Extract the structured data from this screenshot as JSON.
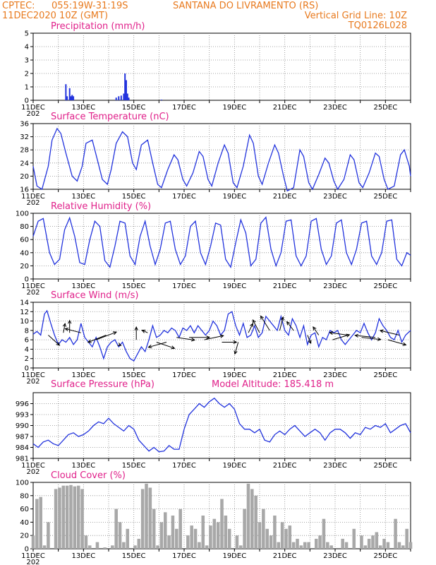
{
  "header": {
    "source": "CPTEC:",
    "coords": "055:19W-31:19S",
    "location": "SANTANA DO LIVRAMENTO (RS)",
    "run": "11DEC2020 10Z (GMT)",
    "grid_note": "Vertical Grid Line: 10Z",
    "model_code": "TQ0126L028"
  },
  "x_axis": {
    "days": [
      11,
      26
    ],
    "labels": [
      "11DEC",
      "13DEC",
      "15DEC",
      "17DEC",
      "19DEC",
      "21DEC",
      "23DEC",
      "25DEC"
    ],
    "label_days": [
      11,
      13,
      15,
      17,
      19,
      21,
      23,
      25
    ],
    "fragment": "202"
  },
  "colors": {
    "line": "#2233dd",
    "bar": "#2233dd",
    "cloud": "#a8a8a8",
    "arrow": "#000000",
    "header": "#e87a1e",
    "title": "#e0208a"
  },
  "chart_data": [
    {
      "id": "precip",
      "type": "bar",
      "title": "Precipitation (mm/h)",
      "ylim": [
        0,
        5
      ],
      "yticks": [
        "0",
        "1",
        "2",
        "3",
        "4",
        "5"
      ],
      "x": [
        12.3,
        12.35,
        12.45,
        12.5,
        12.55,
        12.6,
        14.3,
        14.4,
        14.5,
        14.6,
        14.65,
        14.7,
        14.75,
        14.8,
        16.1
      ],
      "values": [
        1.2,
        0.3,
        0.9,
        0.3,
        0.4,
        0.3,
        0.2,
        0.3,
        0.35,
        0.5,
        2.0,
        1.5,
        0.5,
        0.2,
        0.05
      ]
    },
    {
      "id": "temp",
      "type": "line",
      "title": "Surface Temperature (nC)",
      "ylim": [
        16,
        36
      ],
      "yticks": [
        "16",
        "20",
        "24",
        "28",
        "32",
        "36"
      ],
      "x": [
        11.0,
        11.15,
        11.35,
        11.6,
        11.75,
        11.95,
        12.1,
        12.3,
        12.55,
        12.75,
        12.95,
        13.1,
        13.35,
        13.55,
        13.75,
        13.95,
        14.1,
        14.3,
        14.55,
        14.75,
        14.95,
        15.1,
        15.3,
        15.55,
        15.75,
        15.95,
        16.1,
        16.35,
        16.6,
        16.75,
        16.95,
        17.1,
        17.35,
        17.6,
        17.75,
        17.95,
        18.1,
        18.35,
        18.6,
        18.75,
        18.95,
        19.1,
        19.35,
        19.6,
        19.75,
        19.95,
        20.1,
        20.35,
        20.6,
        20.75,
        20.95,
        21.1,
        21.35,
        21.6,
        21.75,
        21.95,
        22.1,
        22.35,
        22.6,
        22.75,
        22.95,
        23.1,
        23.35,
        23.6,
        23.75,
        23.95,
        24.1,
        24.35,
        24.6,
        24.75,
        24.95,
        25.1,
        25.35,
        25.6,
        25.75,
        25.95,
        26.0
      ],
      "values": [
        23,
        17,
        16,
        23,
        31,
        34.5,
        33,
        27,
        20,
        18.5,
        23,
        30,
        31,
        25,
        19,
        17.5,
        22,
        30,
        33.5,
        32,
        24,
        22,
        29.5,
        31,
        24,
        17.5,
        16.5,
        22,
        26.5,
        25,
        19,
        17,
        21,
        27.5,
        26,
        19,
        17,
        24,
        29.5,
        27,
        18,
        16.5,
        23,
        32.5,
        30,
        20,
        17.5,
        24,
        29.5,
        27,
        20,
        15.5,
        16.5,
        28,
        26,
        18,
        16,
        20.5,
        25.5,
        24,
        18.5,
        16,
        19,
        26.5,
        25,
        18,
        16.5,
        21,
        27,
        26,
        19,
        16,
        17,
        26.5,
        28,
        23,
        20
      ]
    },
    {
      "id": "rh",
      "type": "line",
      "title": "Relative Humidity (%)",
      "ylim": [
        0,
        100
      ],
      "yticks": [
        "0",
        "20",
        "40",
        "60",
        "80",
        "100"
      ],
      "x": [
        11.0,
        11.2,
        11.4,
        11.65,
        11.85,
        12.05,
        12.25,
        12.45,
        12.65,
        12.85,
        13.05,
        13.25,
        13.45,
        13.65,
        13.85,
        14.05,
        14.25,
        14.45,
        14.65,
        14.85,
        15.05,
        15.25,
        15.45,
        15.65,
        15.85,
        16.05,
        16.25,
        16.45,
        16.65,
        16.85,
        17.05,
        17.25,
        17.45,
        17.65,
        17.85,
        18.05,
        18.25,
        18.45,
        18.65,
        18.85,
        19.05,
        19.25,
        19.45,
        19.65,
        19.85,
        20.05,
        20.25,
        20.45,
        20.65,
        20.85,
        21.05,
        21.25,
        21.45,
        21.65,
        21.85,
        22.05,
        22.25,
        22.45,
        22.65,
        22.85,
        23.05,
        23.25,
        23.45,
        23.65,
        23.85,
        24.05,
        24.25,
        24.45,
        24.65,
        24.85,
        25.05,
        25.25,
        25.45,
        25.65,
        25.85,
        26.0
      ],
      "values": [
        65,
        88,
        92,
        40,
        22,
        30,
        75,
        93,
        65,
        25,
        22,
        60,
        88,
        80,
        28,
        18,
        50,
        88,
        85,
        35,
        22,
        65,
        88,
        50,
        22,
        45,
        85,
        88,
        45,
        22,
        35,
        80,
        88,
        40,
        22,
        50,
        85,
        82,
        30,
        18,
        55,
        90,
        70,
        20,
        30,
        85,
        94,
        45,
        20,
        40,
        88,
        90,
        35,
        20,
        35,
        88,
        92,
        45,
        22,
        35,
        85,
        90,
        40,
        22,
        45,
        85,
        88,
        35,
        22,
        40,
        88,
        90,
        30,
        20,
        40,
        36
      ]
    },
    {
      "id": "wind",
      "type": "line",
      "title": "Surface Wind (m/s)",
      "ylim": [
        0,
        14
      ],
      "yticks": [
        "0",
        "2",
        "4",
        "6",
        "8",
        "10",
        "12",
        "14"
      ],
      "x": [
        11.0,
        11.15,
        11.3,
        11.45,
        11.55,
        11.7,
        11.85,
        12.0,
        12.15,
        12.3,
        12.45,
        12.6,
        12.75,
        12.9,
        13.05,
        13.2,
        13.35,
        13.5,
        13.65,
        13.8,
        13.95,
        14.1,
        14.25,
        14.4,
        14.55,
        14.7,
        14.85,
        15.0,
        15.15,
        15.3,
        15.45,
        15.6,
        15.75,
        15.9,
        16.05,
        16.2,
        16.35,
        16.5,
        16.65,
        16.8,
        16.95,
        17.1,
        17.25,
        17.4,
        17.55,
        17.7,
        17.85,
        18.0,
        18.15,
        18.3,
        18.45,
        18.6,
        18.75,
        18.9,
        19.05,
        19.2,
        19.35,
        19.5,
        19.65,
        19.8,
        19.95,
        20.1,
        20.25,
        20.4,
        20.55,
        20.7,
        20.85,
        21.0,
        21.15,
        21.3,
        21.45,
        21.6,
        21.75,
        21.9,
        22.05,
        22.2,
        22.35,
        22.5,
        22.65,
        22.8,
        22.95,
        23.1,
        23.25,
        23.4,
        23.55,
        23.7,
        23.85,
        24.0,
        24.15,
        24.3,
        24.45,
        24.6,
        24.75,
        24.9,
        25.05,
        25.2,
        25.35,
        25.5,
        25.65,
        25.8,
        26.0
      ],
      "values": [
        7.2,
        7.8,
        7,
        11.5,
        12.2,
        9.5,
        7,
        5,
        6,
        5.5,
        6.5,
        5,
        6,
        9.5,
        6.5,
        5.5,
        4.5,
        6.5,
        4.5,
        2,
        4.5,
        5.5,
        6,
        4.5,
        5.5,
        3.5,
        2,
        1.5,
        3,
        4.5,
        3.5,
        6,
        9,
        6.5,
        7,
        8,
        7.5,
        8.5,
        8,
        6.5,
        8.5,
        8,
        9,
        7.5,
        9,
        8,
        7,
        8,
        10,
        9,
        7,
        8,
        11.5,
        12,
        9,
        7,
        9.5,
        6.5,
        7,
        9,
        6.5,
        7.5,
        11,
        10,
        9,
        8,
        11,
        8,
        7,
        10.5,
        9,
        6.5,
        9,
        5,
        7,
        7.5,
        4.5,
        6.5,
        6,
        8,
        7.5,
        8,
        6,
        5,
        6,
        7,
        8,
        7.5,
        9.5,
        7.5,
        6,
        7.5,
        10.5,
        9,
        8,
        6.5,
        6,
        8,
        5.5,
        7,
        8
      ]
    },
    {
      "id": "pres",
      "type": "line",
      "title": "Surface Pressure (hPa)",
      "extra_label": "Model Altitude: 185.418 m",
      "ylim": [
        981,
        999
      ],
      "yticks": [
        "981",
        "984",
        "987",
        "990",
        "993",
        "996"
      ],
      "x": [
        11.0,
        11.2,
        11.4,
        11.6,
        11.8,
        12.0,
        12.2,
        12.4,
        12.6,
        12.8,
        13.0,
        13.2,
        13.4,
        13.6,
        13.8,
        14.0,
        14.2,
        14.4,
        14.6,
        14.8,
        15.0,
        15.2,
        15.4,
        15.6,
        15.8,
        16.0,
        16.2,
        16.4,
        16.6,
        16.8,
        17.0,
        17.2,
        17.4,
        17.6,
        17.8,
        18.0,
        18.2,
        18.4,
        18.6,
        18.8,
        19.0,
        19.2,
        19.4,
        19.6,
        19.8,
        20.0,
        20.2,
        20.4,
        20.6,
        20.8,
        21.0,
        21.2,
        21.4,
        21.6,
        21.8,
        22.0,
        22.2,
        22.4,
        22.6,
        22.8,
        23.0,
        23.2,
        23.4,
        23.6,
        23.8,
        24.0,
        24.2,
        24.4,
        24.6,
        24.8,
        25.0,
        25.2,
        25.4,
        25.6,
        25.8,
        26.0
      ],
      "values": [
        985,
        984,
        985.5,
        986,
        985,
        984.5,
        986,
        987.5,
        988,
        987,
        987.5,
        988.5,
        990,
        991,
        990.5,
        992,
        990.5,
        989.5,
        988.5,
        990,
        989,
        986,
        984.5,
        983,
        984,
        982.8,
        983,
        984.5,
        983.5,
        983.5,
        989,
        993,
        994.5,
        996,
        995,
        996.5,
        997.5,
        996,
        995,
        996,
        994.5,
        990.5,
        989,
        989,
        988,
        989,
        986,
        985.5,
        987.5,
        988.5,
        987.5,
        989,
        990,
        988.5,
        987,
        988,
        989,
        988,
        986,
        988,
        989,
        989,
        988,
        986.5,
        988,
        987.5,
        989.5,
        989,
        990,
        989.5,
        990.5,
        988,
        989,
        990,
        990.5,
        988
      ]
    },
    {
      "id": "cloud",
      "type": "area",
      "title": "Cloud Cover (%)",
      "ylim": [
        0,
        100
      ],
      "yticks": [
        "0",
        "20",
        "40",
        "60",
        "80",
        "100"
      ],
      "x": [
        11.0,
        11.15,
        11.3,
        11.45,
        11.6,
        11.75,
        11.9,
        12.05,
        12.2,
        12.35,
        12.5,
        12.65,
        12.8,
        12.95,
        13.1,
        13.25,
        13.4,
        13.55,
        13.7,
        13.85,
        14.0,
        14.15,
        14.3,
        14.45,
        14.6,
        14.75,
        14.9,
        15.05,
        15.2,
        15.35,
        15.5,
        15.65,
        15.8,
        15.95,
        16.1,
        16.25,
        16.4,
        16.55,
        16.7,
        16.85,
        17.0,
        17.15,
        17.3,
        17.45,
        17.6,
        17.75,
        17.9,
        18.05,
        18.2,
        18.35,
        18.5,
        18.65,
        18.8,
        18.95,
        19.1,
        19.25,
        19.4,
        19.55,
        19.7,
        19.85,
        20.0,
        20.15,
        20.3,
        20.45,
        20.6,
        20.75,
        20.9,
        21.05,
        21.2,
        21.35,
        21.5,
        21.65,
        21.8,
        21.95,
        22.1,
        22.25,
        22.4,
        22.55,
        22.7,
        22.85,
        23.0,
        23.15,
        23.3,
        23.45,
        23.6,
        23.75,
        23.9,
        24.05,
        24.2,
        24.35,
        24.5,
        24.65,
        24.8,
        24.95,
        25.1,
        25.25,
        25.4,
        25.55,
        25.7,
        25.85,
        26.0
      ],
      "values": [
        20,
        75,
        78,
        5,
        40,
        0,
        90,
        92,
        95,
        95,
        96,
        94,
        95,
        90,
        20,
        5,
        0,
        10,
        0,
        2,
        0,
        5,
        60,
        40,
        10,
        30,
        0,
        5,
        15,
        90,
        98,
        92,
        60,
        5,
        40,
        55,
        20,
        50,
        30,
        60,
        0,
        20,
        35,
        30,
        10,
        50,
        5,
        35,
        45,
        40,
        75,
        50,
        30,
        0,
        20,
        5,
        60,
        98,
        90,
        80,
        40,
        60,
        30,
        20,
        50,
        10,
        40,
        30,
        35,
        10,
        15,
        5,
        10,
        10,
        0,
        15,
        20,
        45,
        10,
        5,
        0,
        0,
        15,
        10,
        0,
        30,
        0,
        20,
        5,
        15,
        20,
        25,
        5,
        15,
        10,
        0,
        45,
        10,
        5,
        30,
        10
      ]
    }
  ],
  "wind_vectors": {
    "x": [
      11.6,
      12.2,
      12.45,
      12.9,
      13.5,
      13.9,
      14.4,
      15.1,
      15.55,
      15.9,
      16.3,
      16.7,
      17.2,
      17.8,
      18.5,
      19.15,
      19.55,
      20.0,
      20.4,
      20.8,
      21.35,
      21.9,
      22.35,
      22.9,
      23.5,
      24.05,
      24.6,
      25.1,
      25.55
    ],
    "y": [
      7,
      7.5,
      7.5,
      7.5,
      6,
      7,
      5,
      6,
      7.5,
      5.5,
      5.5,
      6.5,
      6.5,
      6,
      5.5,
      5.5,
      7.5,
      7.5,
      8,
      8,
      8,
      7,
      7,
      6,
      7,
      6.5,
      6.5,
      6,
      7
    ],
    "u": [
      1,
      0.15,
      0,
      -1.4,
      1.8,
      -1.6,
      0.2,
      0,
      -0.5,
      1.6,
      -1.6,
      1.6,
      1.8,
      1.7,
      1.3,
      -0.3,
      0.4,
      -0.6,
      -0.8,
      0.3,
      -0.6,
      0.3,
      -0.5,
      1.5,
      -1.6,
      1.7,
      -1.8,
      1.6,
      -1.7
    ],
    "v": [
      -2,
      1.8,
      2.4,
      0.8,
      1.5,
      -1.4,
      -0.2,
      2.5,
      0.5,
      -1.2,
      -1,
      -0.5,
      0,
      0.8,
      0,
      -2.3,
      1.8,
      2.5,
      2.8,
      2.6,
      1.7,
      -1.6,
      1.6,
      1,
      0.5,
      -0.4,
      0.4,
      -1,
      0.9
    ]
  }
}
